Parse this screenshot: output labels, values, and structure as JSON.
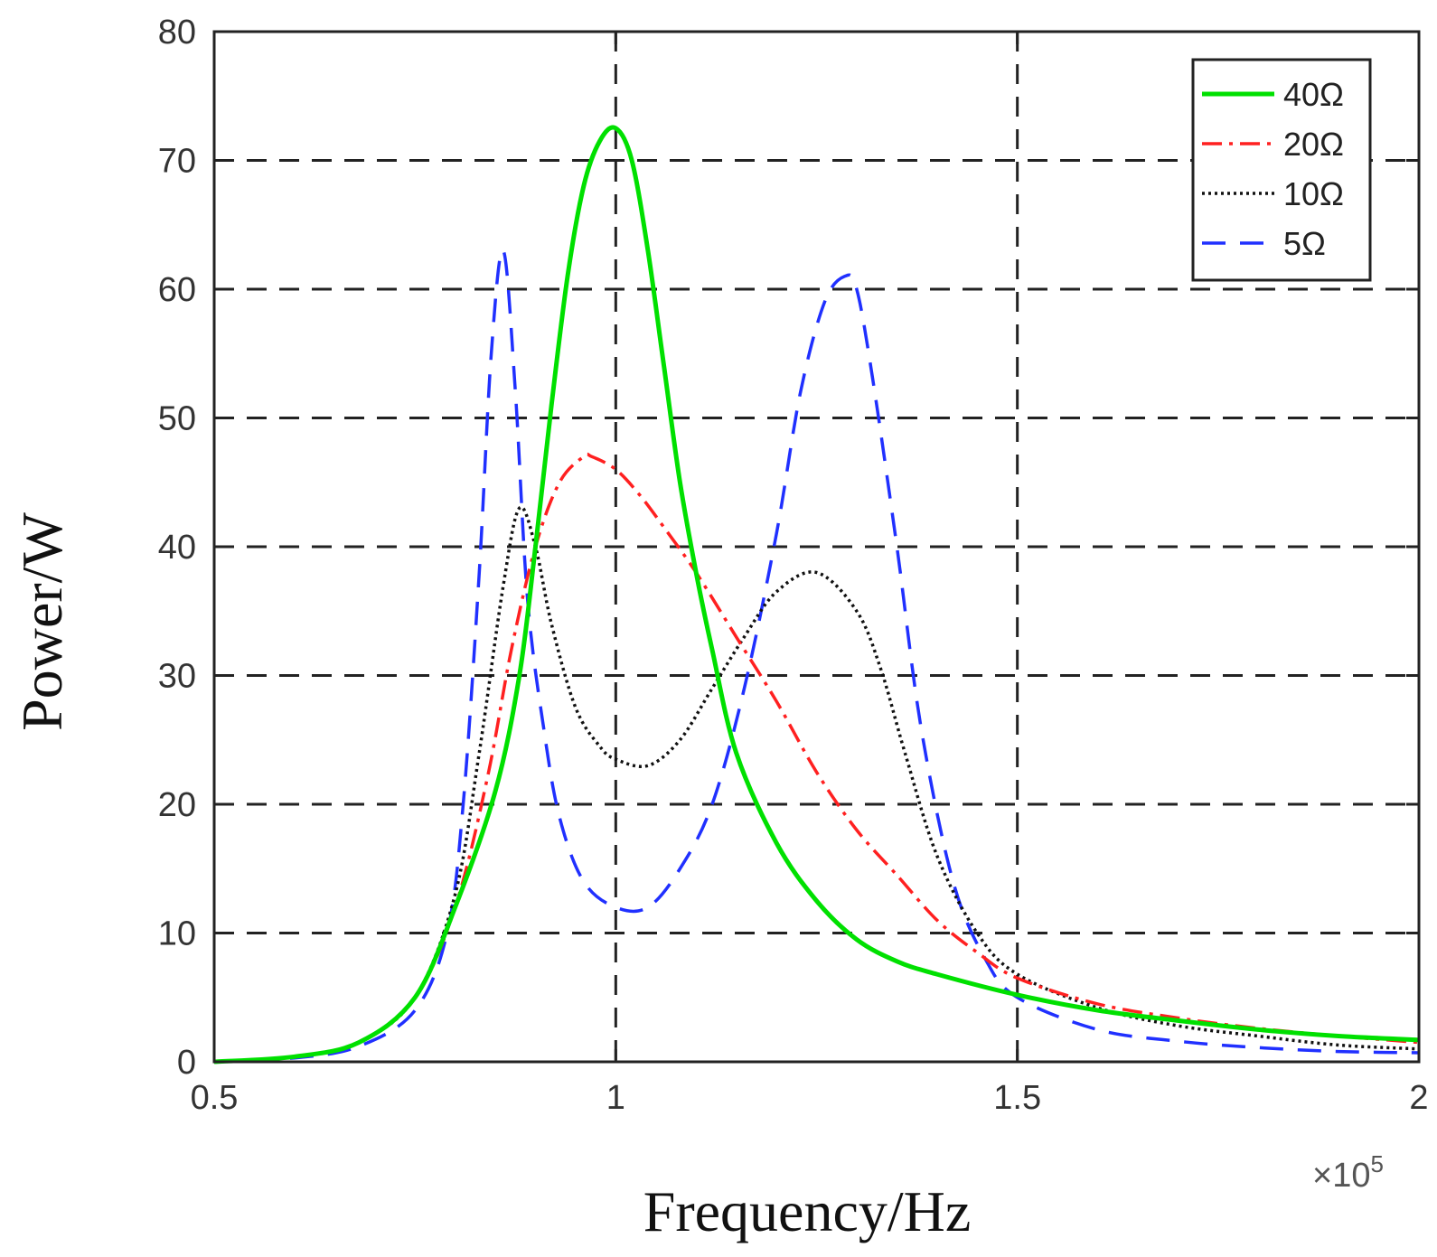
{
  "chart_data": {
    "type": "line",
    "title": "",
    "xlabel": "Frequency/Hz",
    "ylabel": "Power/W",
    "x_exponent_label": "×10",
    "x_exponent_power": "5",
    "xlim": [
      0.5,
      2
    ],
    "ylim": [
      0,
      80
    ],
    "xticks": [
      0.5,
      1,
      1.5,
      2
    ],
    "xtick_labels": [
      "0.5",
      "1",
      "1.5",
      "2"
    ],
    "yticks": [
      0,
      10,
      20,
      30,
      40,
      50,
      60,
      70,
      80
    ],
    "ytick_labels": [
      "0",
      "10",
      "20",
      "30",
      "40",
      "50",
      "60",
      "70",
      "80"
    ],
    "grid": true,
    "legend_position": "top-right",
    "series": [
      {
        "name": "40Ω",
        "color": "#00e000",
        "style": "solid",
        "x": [
          0.5,
          0.6,
          0.68,
          0.75,
          0.8,
          0.85,
          0.88,
          0.9,
          0.92,
          0.94,
          0.96,
          0.98,
          1.0,
          1.02,
          1.04,
          1.06,
          1.08,
          1.1,
          1.12,
          1.15,
          1.2,
          1.25,
          1.3,
          1.35,
          1.4,
          1.5,
          1.6,
          1.7,
          1.8,
          1.9,
          2.0
        ],
        "y": [
          0,
          0.4,
          1.5,
          5,
          12,
          21,
          30,
          40,
          51,
          61,
          68,
          71.5,
          72.5,
          70,
          63,
          54,
          45,
          38,
          32,
          24,
          17,
          12.5,
          9.5,
          7.8,
          6.8,
          5.2,
          4,
          3.2,
          2.5,
          2.0,
          1.7
        ]
      },
      {
        "name": "20Ω",
        "color": "#ff2020",
        "style": "dashdot",
        "x": [
          0.5,
          0.6,
          0.68,
          0.75,
          0.8,
          0.84,
          0.87,
          0.9,
          0.93,
          0.96,
          0.97,
          1.0,
          1.03,
          1.06,
          1.1,
          1.15,
          1.2,
          1.25,
          1.3,
          1.35,
          1.4,
          1.45,
          1.5,
          1.6,
          1.7,
          1.8,
          1.9,
          2.0
        ],
        "y": [
          0,
          0.4,
          1.5,
          5,
          12,
          22,
          32,
          40,
          45,
          47,
          47,
          46,
          44,
          41.5,
          38,
          33,
          28,
          22.5,
          18,
          14.5,
          11,
          8.5,
          6.5,
          4.5,
          3.4,
          2.6,
          2.0,
          1.5
        ]
      },
      {
        "name": "10Ω",
        "color": "#111111",
        "style": "dotted",
        "x": [
          0.5,
          0.6,
          0.68,
          0.75,
          0.8,
          0.83,
          0.86,
          0.88,
          0.9,
          0.92,
          0.95,
          0.98,
          1.0,
          1.04,
          1.08,
          1.12,
          1.16,
          1.2,
          1.25,
          1.3,
          1.33,
          1.36,
          1.4,
          1.45,
          1.5,
          1.6,
          1.7,
          1.8,
          1.9,
          2.0
        ],
        "y": [
          0,
          0.4,
          1.5,
          5,
          13,
          24,
          37,
          43,
          40,
          34,
          27.5,
          24.5,
          23.5,
          23,
          25,
          29,
          33,
          36.5,
          38,
          35,
          30.5,
          24,
          16,
          10,
          6.8,
          4.2,
          2.8,
          2.0,
          1.3,
          1.0
        ]
      },
      {
        "name": "5Ω",
        "color": "#2030ff",
        "style": "dashed",
        "x": [
          0.5,
          0.6,
          0.68,
          0.75,
          0.79,
          0.81,
          0.83,
          0.845,
          0.86,
          0.875,
          0.89,
          0.91,
          0.93,
          0.96,
          1.0,
          1.04,
          1.08,
          1.12,
          1.16,
          1.2,
          1.23,
          1.26,
          1.285,
          1.3,
          1.32,
          1.35,
          1.38,
          1.42,
          1.46,
          1.5,
          1.6,
          1.7,
          1.8,
          1.9,
          2.0
        ],
        "y": [
          0,
          0.3,
          1.2,
          4,
          10,
          20,
          38,
          55,
          63,
          52,
          36,
          26,
          19,
          14,
          12,
          12,
          15,
          20,
          29,
          41,
          52,
          59,
          61,
          60,
          53,
          40,
          26,
          14,
          8,
          5,
          2.5,
          1.6,
          1.1,
          0.8,
          0.7
        ]
      }
    ]
  }
}
